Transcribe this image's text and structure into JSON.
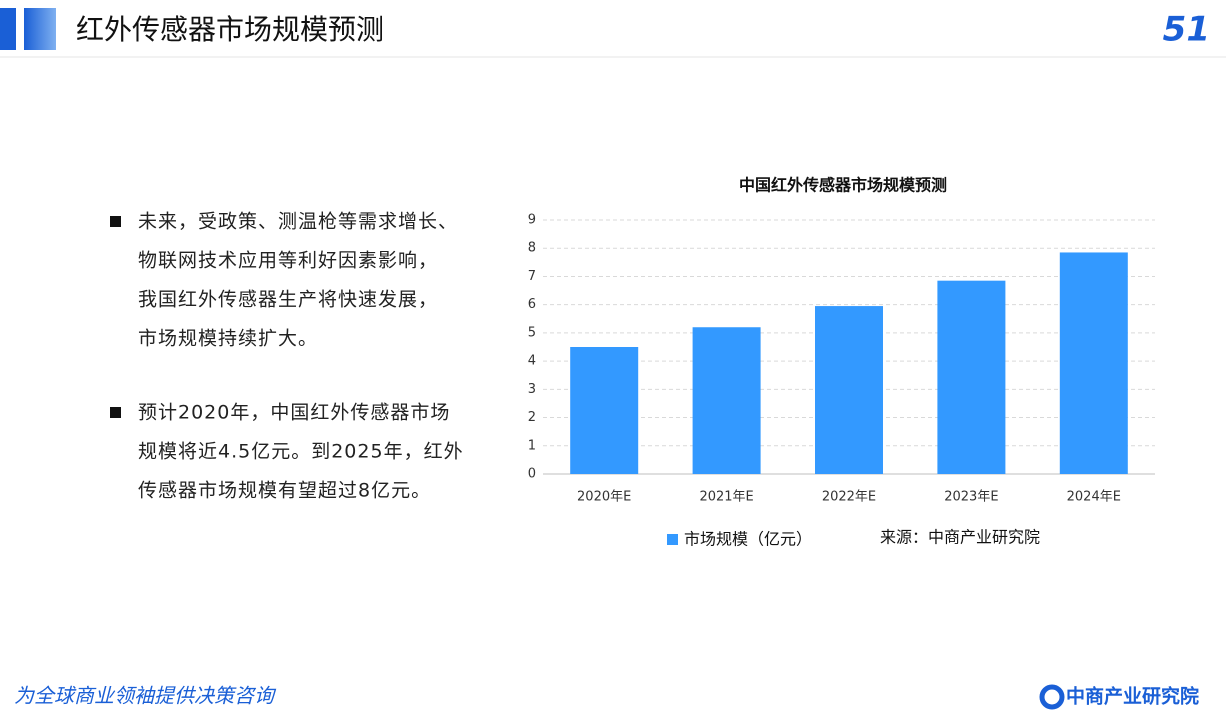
{
  "header": {
    "title": "红外传感器市场规模预测",
    "page_number": "51"
  },
  "bullets": [
    {
      "lines": [
        "未来，受政策、测温枪等需求增长、",
        "物联网技术应用等利好因素影响，",
        "我国红外传感器生产将快速发展，",
        "市场规模持续扩大。"
      ]
    },
    {
      "lines": [
        "预计2020年，中国红外传感器市场",
        "规模将近4.5亿元。到2025年，红外",
        "传感器市场规模有望超过8亿元。"
      ]
    }
  ],
  "footer": {
    "slogan": "为全球商业领袖提供决策咨询",
    "brand": "中商产业研究院"
  },
  "chart_data": {
    "type": "bar",
    "title": "中国红外传感器市场规模预测",
    "categories": [
      "2020年E",
      "2021年E",
      "2022年E",
      "2023年E",
      "2024年E"
    ],
    "series": [
      {
        "name": "市场规模（亿元）",
        "color": "#3399ff",
        "values": [
          4.5,
          5.2,
          5.95,
          6.85,
          7.85
        ]
      }
    ],
    "ylim": [
      0,
      9
    ],
    "yticks": [
      0,
      1,
      2,
      3,
      4,
      5,
      6,
      7,
      8,
      9
    ],
    "grid": true,
    "source": "来源：中商产业研究院"
  }
}
